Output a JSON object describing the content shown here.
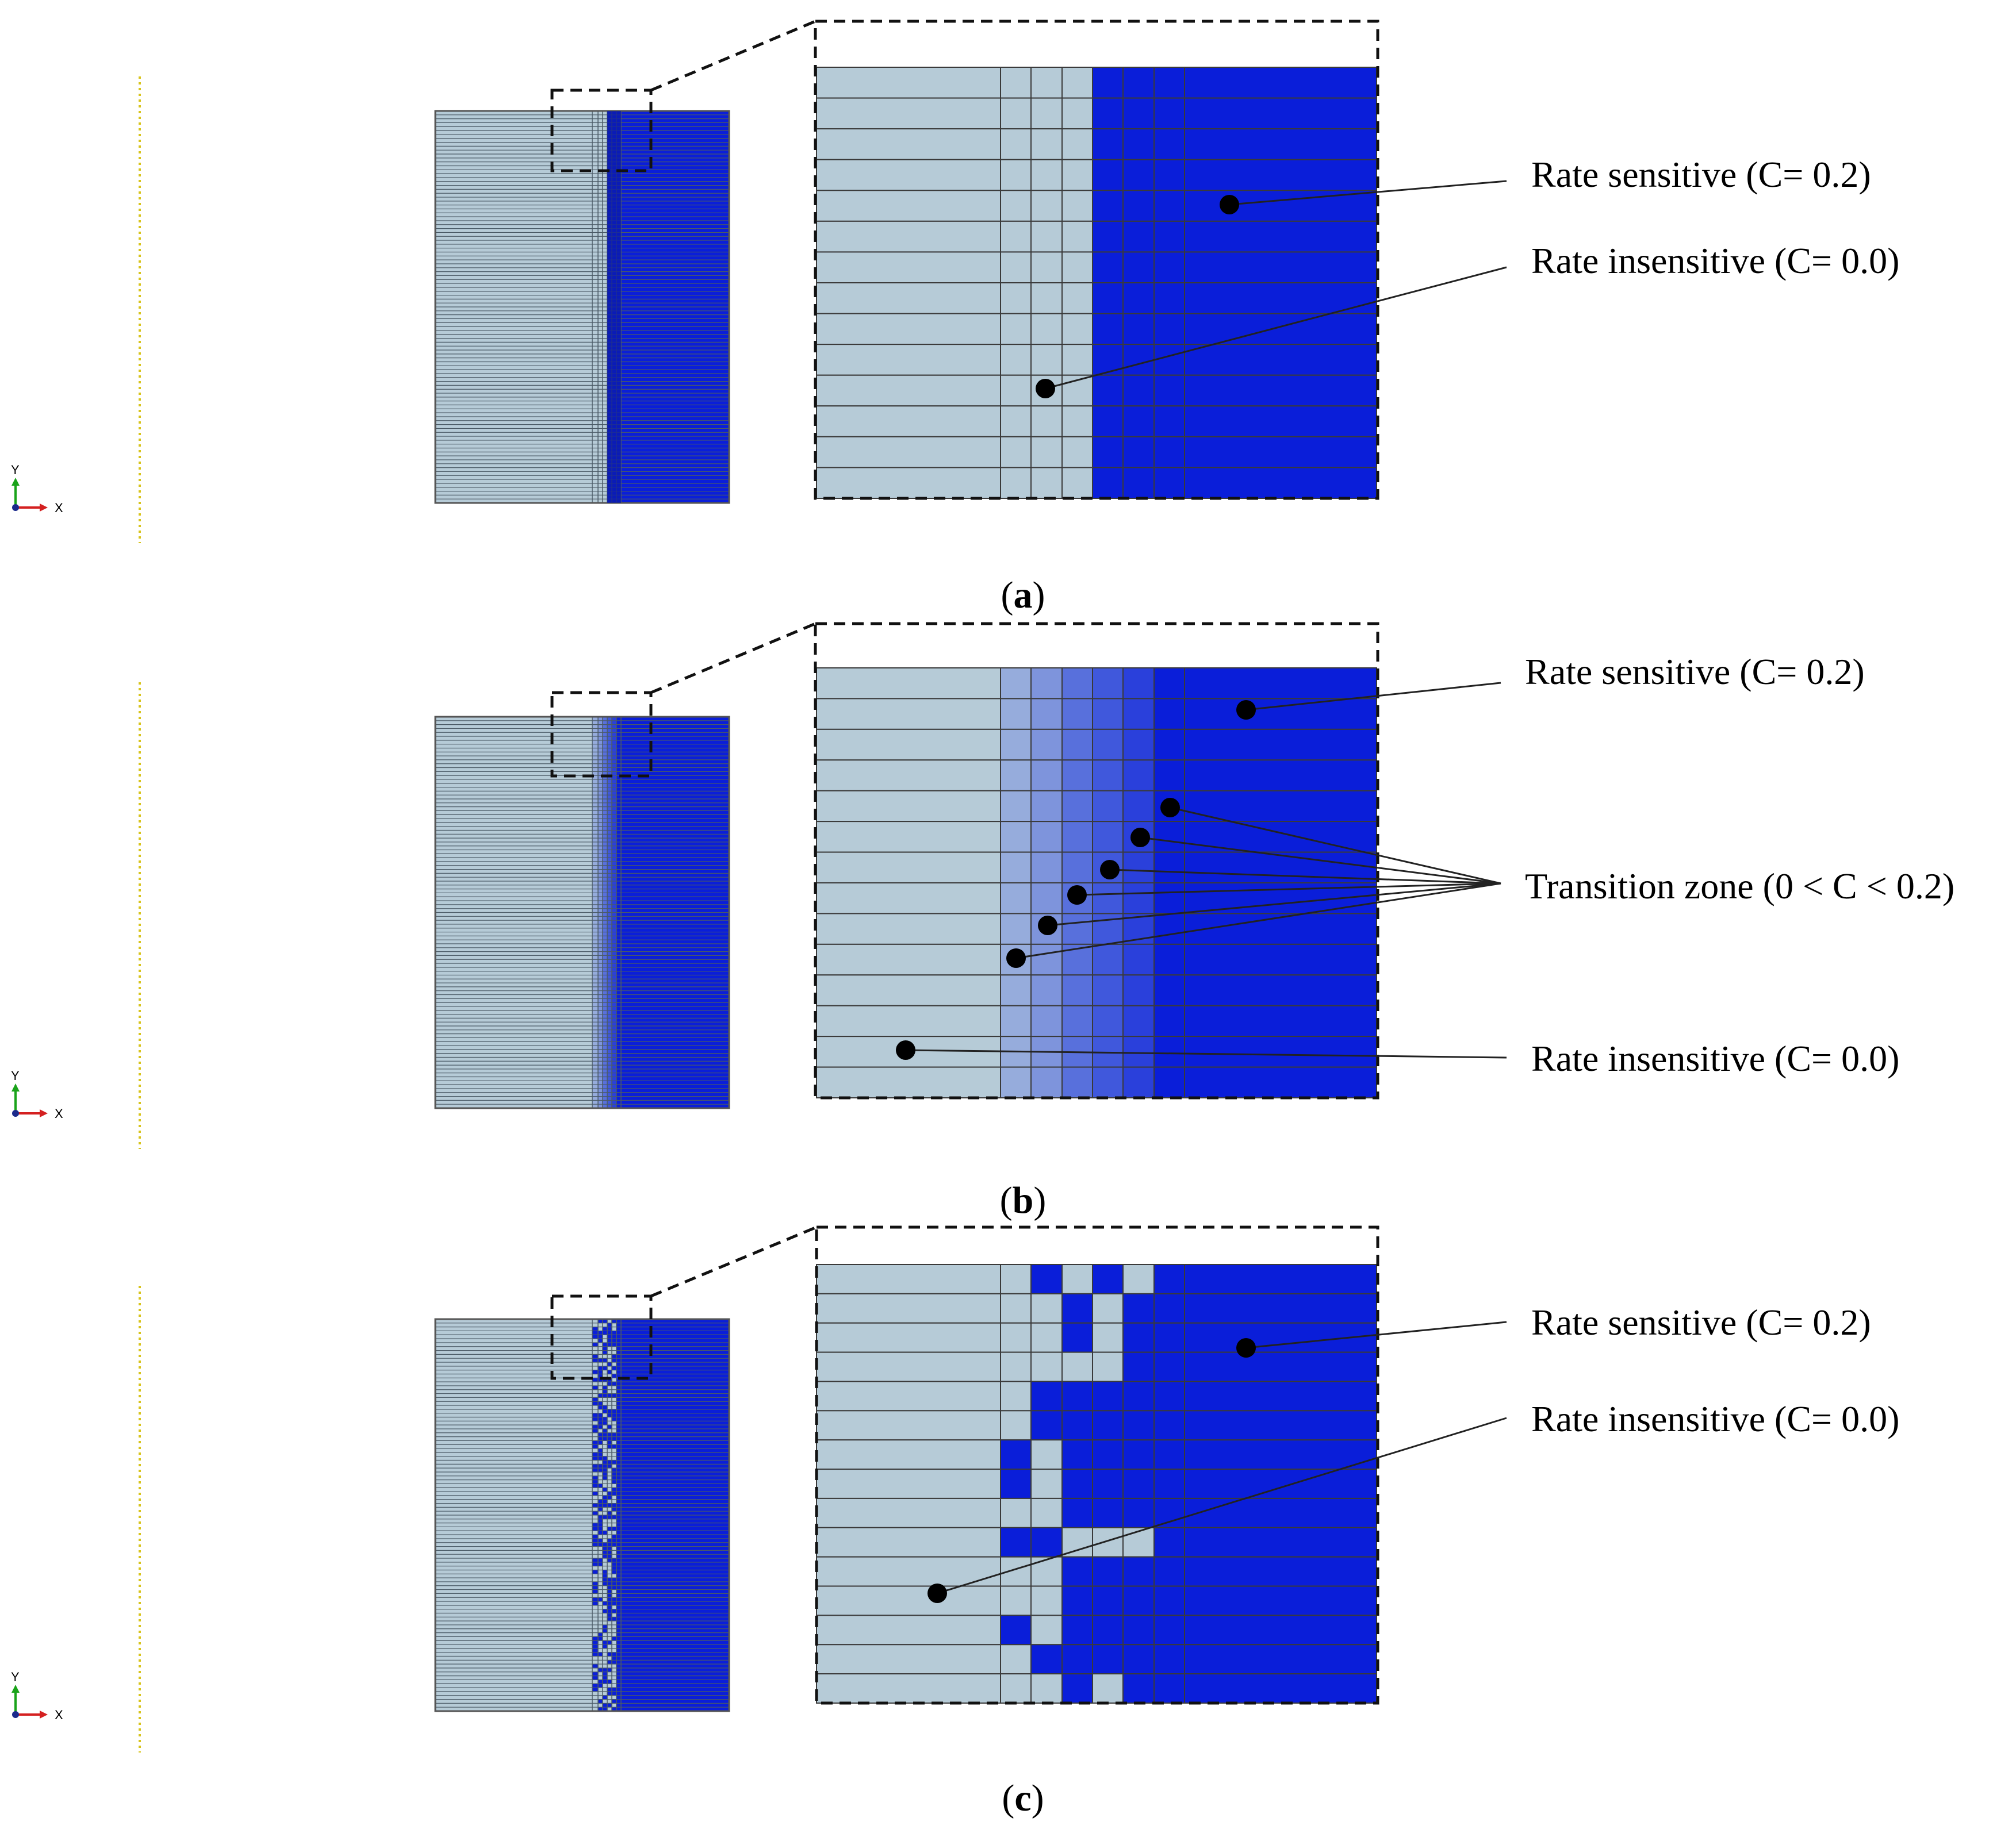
{
  "colors": {
    "insensitive": "#b6cbd7",
    "sensitive": "#0a1ed9",
    "transition": [
      "#96acdc",
      "#7e94dc",
      "#5870dc",
      "#4058dc",
      "#2a40db"
    ],
    "grid": "#3a3a3a",
    "guide_line": "#d8c41c"
  },
  "triad": {
    "y_label": "Y",
    "x_label": "X"
  },
  "panels": [
    {
      "id": "a",
      "caption": {
        "open": "(",
        "letter": "a",
        "close": ")"
      },
      "labels": {
        "sensitive": "Rate sensitive (C= 0.2)",
        "insensitive": "Rate insensitive (C= 0.0)"
      }
    },
    {
      "id": "b",
      "caption": {
        "open": "(",
        "letter": "b",
        "close": ")"
      },
      "labels": {
        "sensitive": "Rate sensitive (C= 0.2)",
        "transition": "Transition zone (0 < C < 0.2)",
        "insensitive": "Rate insensitive (C= 0.0)"
      }
    },
    {
      "id": "c",
      "caption": {
        "open": "(",
        "letter": "c",
        "close": ")"
      },
      "labels": {
        "sensitive": "Rate sensitive (C= 0.2)",
        "insensitive": "Rate insensitive (C= 0.0)"
      }
    }
  ]
}
